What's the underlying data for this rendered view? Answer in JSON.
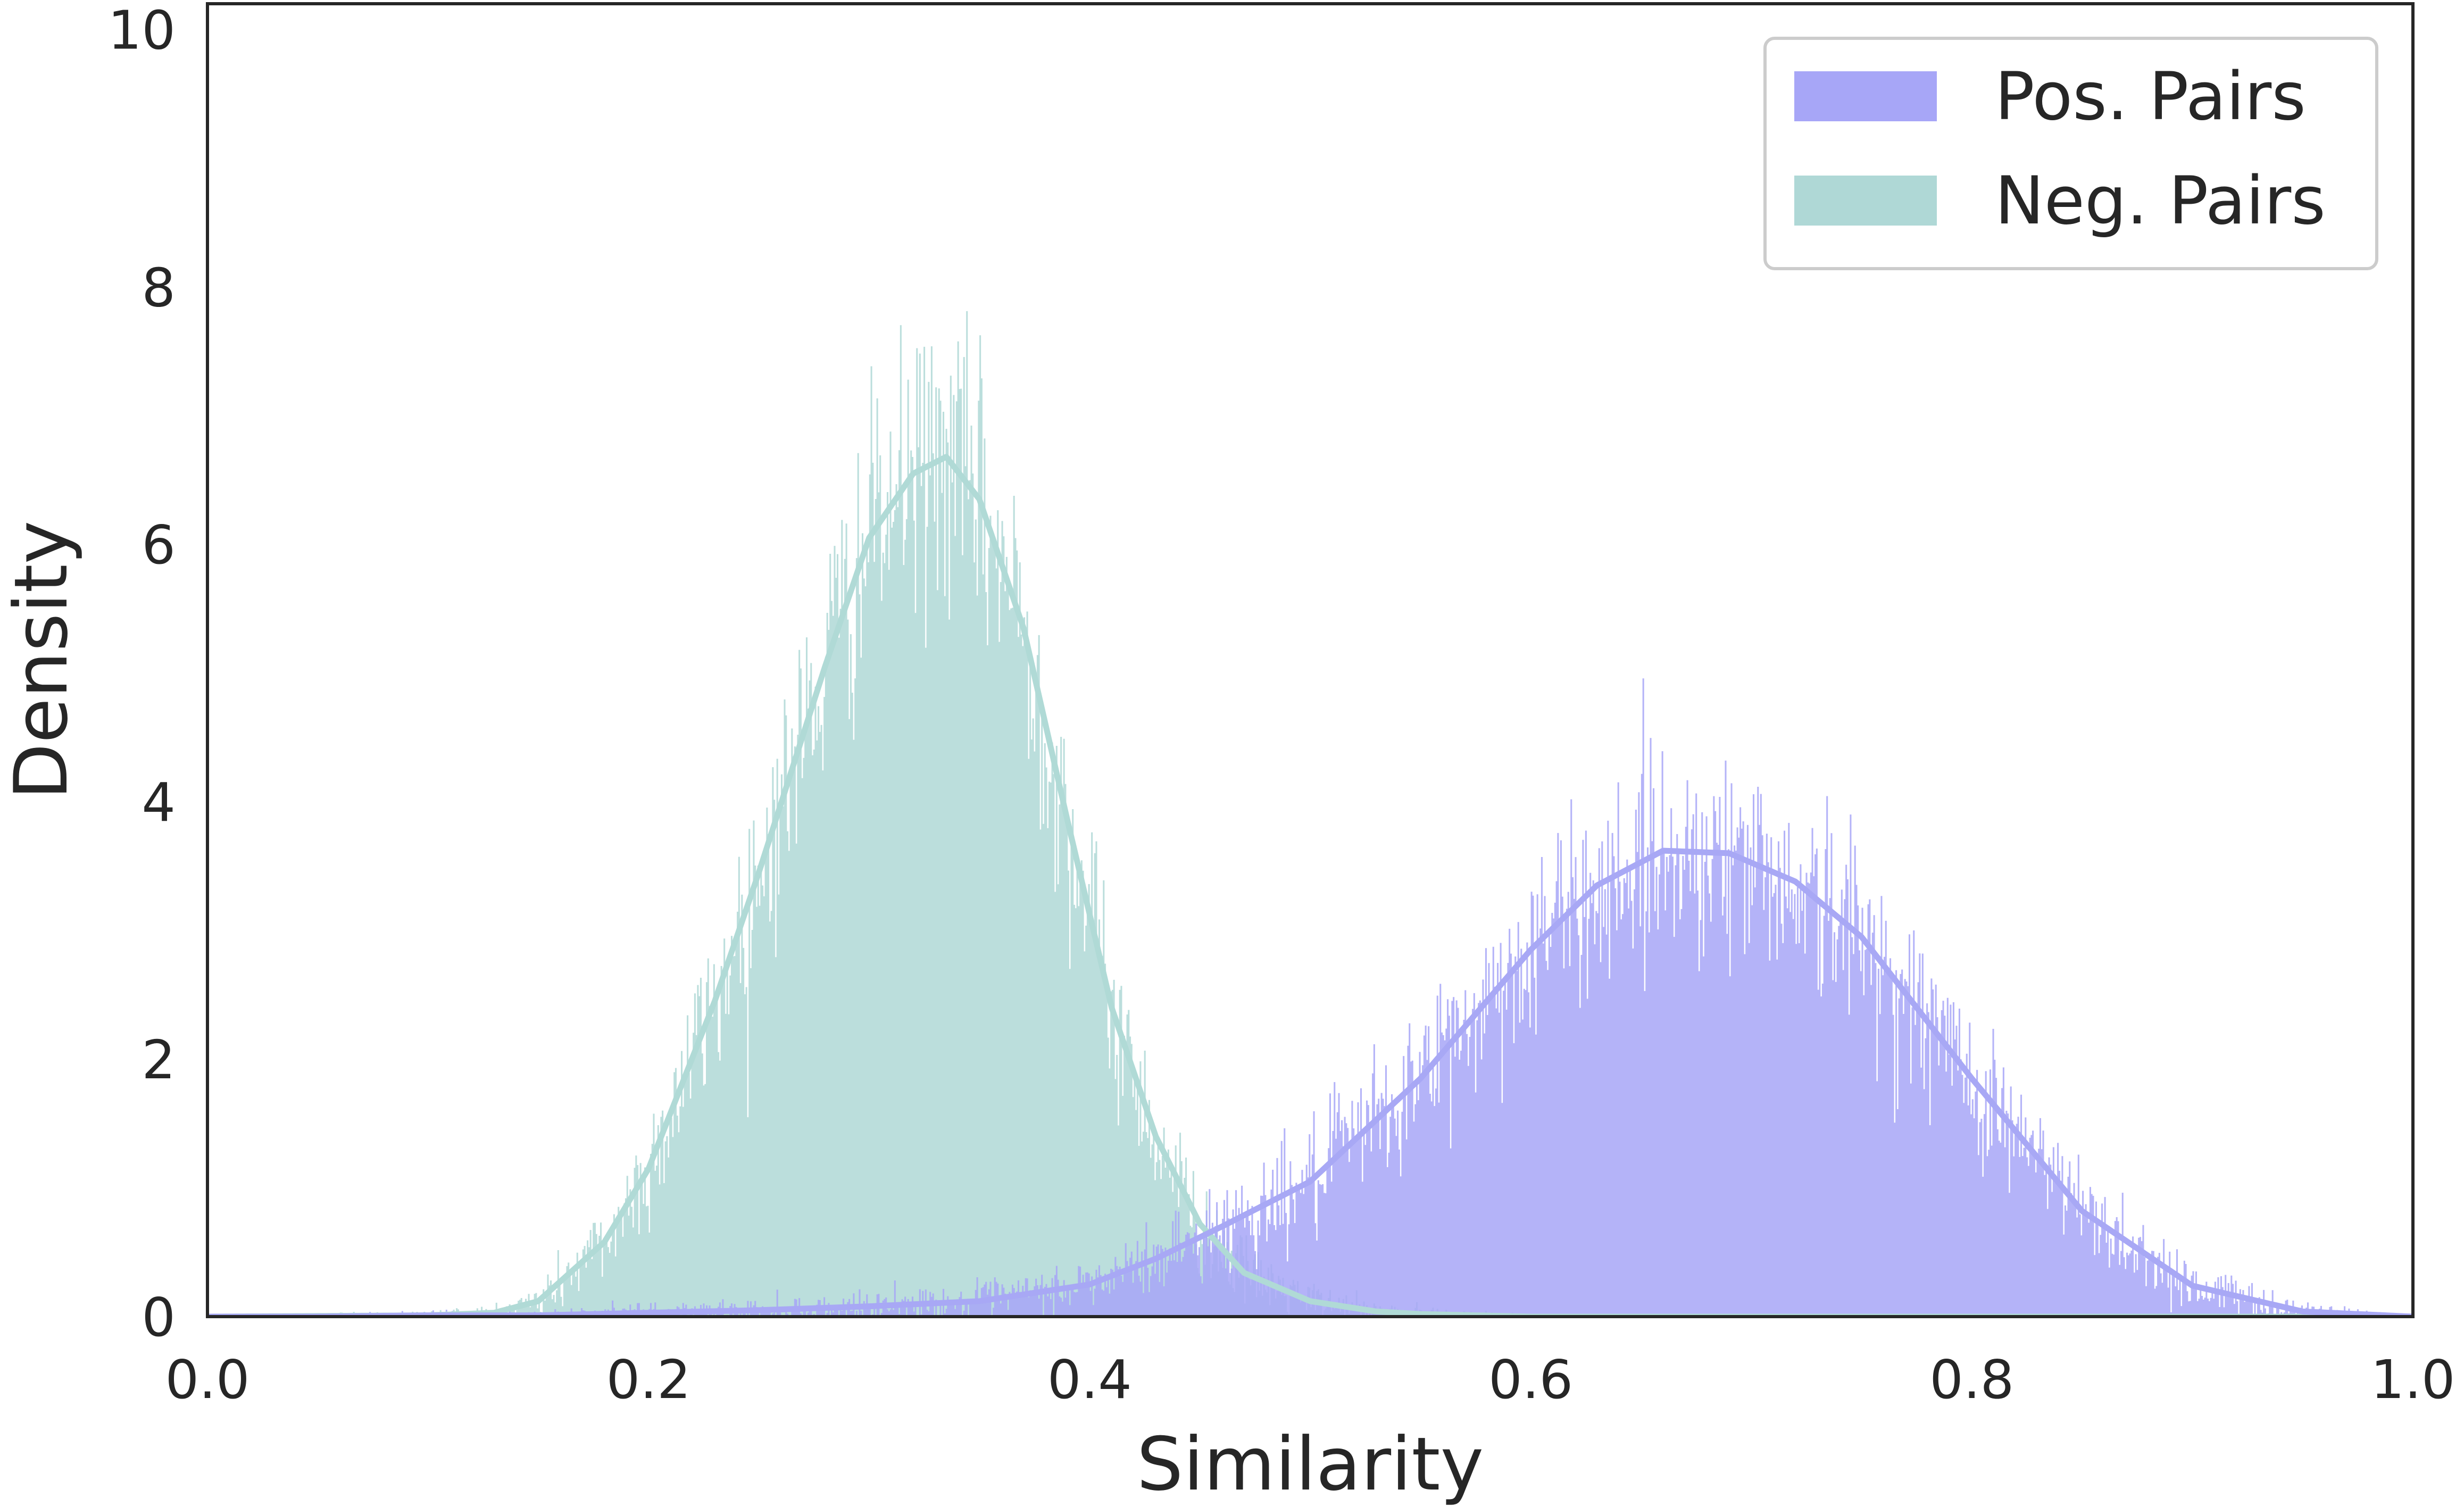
{
  "chart_data": {
    "type": "histogram",
    "xlabel": "Similarity",
    "ylabel": "Density",
    "xlim": [
      0.0,
      1.0
    ],
    "ylim": [
      0,
      10.2
    ],
    "xticks": [
      "0.0",
      "0.2",
      "0.4",
      "0.6",
      "0.8",
      "1.0"
    ],
    "yticks": [
      "0",
      "2",
      "4",
      "6",
      "8",
      "10"
    ],
    "grid": false,
    "legend_position": "top-right",
    "series": [
      {
        "name": "Pos. Pairs",
        "color": "#a7a6f7",
        "line_color": "#a8a8f5",
        "bins": 1500,
        "x_range": [
          0.0,
          1.0
        ],
        "kde_x": [
          0.0,
          0.05,
          0.1,
          0.15,
          0.2,
          0.25,
          0.3,
          0.35,
          0.4,
          0.43,
          0.46,
          0.5,
          0.55,
          0.6,
          0.63,
          0.66,
          0.69,
          0.72,
          0.75,
          0.8,
          0.85,
          0.9,
          0.95,
          1.0
        ],
        "kde_y": [
          0.0,
          0.0,
          0.01,
          0.01,
          0.03,
          0.05,
          0.08,
          0.12,
          0.25,
          0.45,
          0.7,
          1.05,
          1.85,
          2.85,
          3.35,
          3.62,
          3.6,
          3.38,
          2.95,
          1.85,
          0.82,
          0.24,
          0.04,
          0.0
        ]
      },
      {
        "name": "Neg. Pairs",
        "color": "#afd8d6",
        "line_color": "#b0dad6",
        "bins": 1500,
        "x_range": [
          0.0,
          1.0
        ],
        "kde_x": [
          0.0,
          0.1,
          0.13,
          0.15,
          0.18,
          0.2,
          0.23,
          0.25,
          0.28,
          0.3,
          0.32,
          0.335,
          0.35,
          0.37,
          0.39,
          0.41,
          0.43,
          0.45,
          0.47,
          0.5,
          0.53,
          0.55,
          0.6,
          1.0
        ],
        "kde_y": [
          0.0,
          0.01,
          0.03,
          0.12,
          0.58,
          1.15,
          2.45,
          3.45,
          5.05,
          6.05,
          6.55,
          6.68,
          6.35,
          5.35,
          3.85,
          2.4,
          1.4,
          0.72,
          0.34,
          0.12,
          0.04,
          0.02,
          0.0,
          0.0
        ]
      }
    ]
  }
}
